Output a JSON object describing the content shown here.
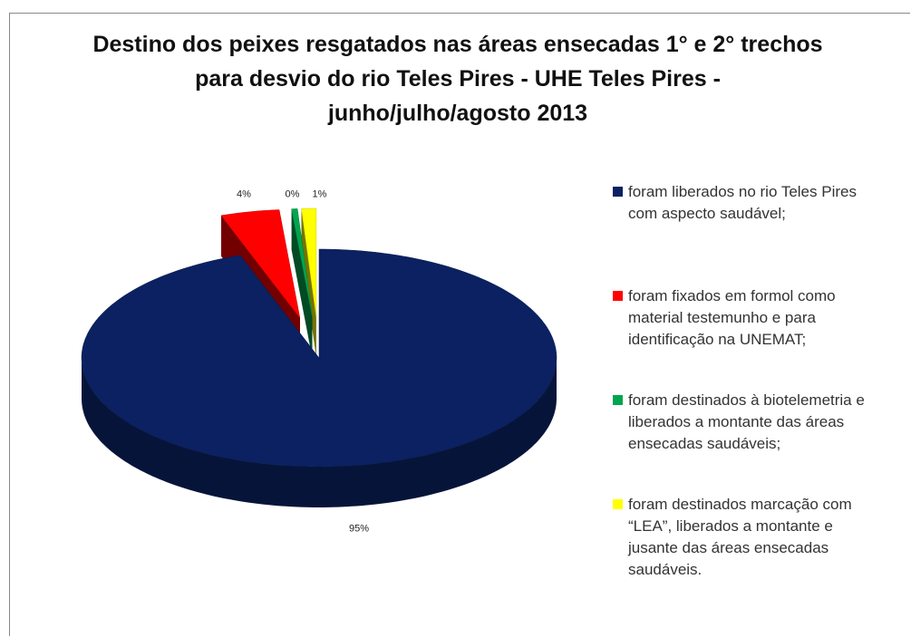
{
  "chart_data": {
    "type": "pie",
    "style": "3d",
    "title": "Destino dos peixes resgatados nas áreas ensecadas 1° e 2° trechos para desvio do rio Teles Pires - UHE Teles Pires - junho/julho/agosto 2013",
    "categories": [
      "foram liberados no rio Teles Pires com aspecto saudável;",
      "foram fixados em formol como material testemunho e para identificação na UNEMAT;",
      "foram destinados à biotelemetria e liberados a montante das áreas ensecadas saudáveis;",
      "foram destinados marcação com “LEA”, liberados a montante e jusante das áreas ensecadas saudáveis."
    ],
    "values": [
      95,
      4,
      0.4,
      1
    ],
    "value_labels": [
      "95%",
      "4%",
      "0%",
      "1%"
    ],
    "colors": [
      "#0b2161",
      "#ff0000",
      "#00a550",
      "#ffff00"
    ],
    "exploded": [
      false,
      true,
      true,
      true
    ],
    "start_angle": 0,
    "direction": "clockwise",
    "legend": "right"
  }
}
